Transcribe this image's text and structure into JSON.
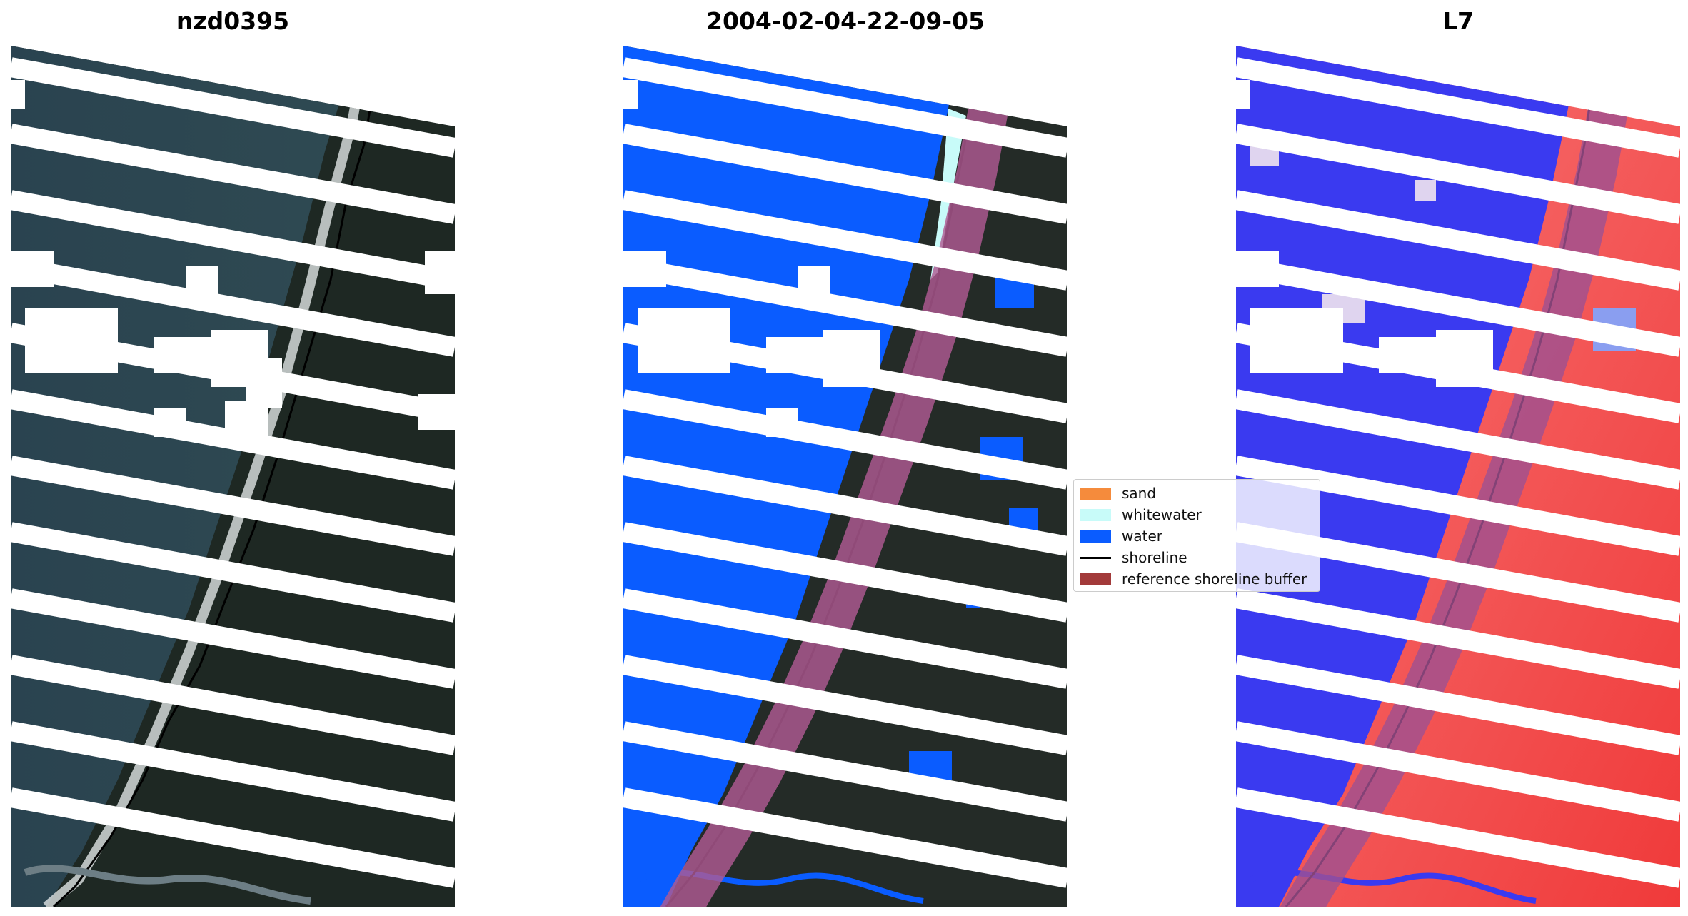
{
  "panels": [
    {
      "title": "nzd0395"
    },
    {
      "title": "2004-02-04-22-09-05"
    },
    {
      "title": "L7"
    }
  ],
  "legend": {
    "items": [
      {
        "label": "sand",
        "kind": "patch",
        "color": "#f58b3c"
      },
      {
        "label": "whitewater",
        "kind": "patch",
        "color": "#c8fbf9"
      },
      {
        "label": "water",
        "kind": "patch",
        "color": "#0a5cff"
      },
      {
        "label": "shoreline",
        "kind": "line",
        "color": "#000000"
      },
      {
        "label": "reference shoreline buffer",
        "kind": "patch",
        "color": "#a23a3a"
      }
    ]
  },
  "colors": {
    "ocean_rgb": "#283d46",
    "land_rgb": "#1f2a24",
    "surf": "#dfe4e3",
    "cloud": "#ffffff",
    "water_class": "#0a5cff",
    "land_class": "#242b27",
    "buffer": "#b05a92",
    "index_water": "#3a3af0",
    "index_land": "#f04848"
  }
}
